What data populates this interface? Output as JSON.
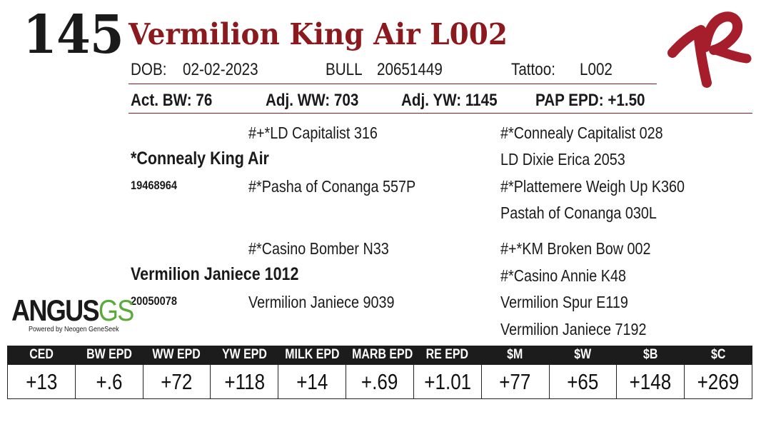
{
  "header": {
    "lot_number": "145",
    "name": "Vermilion King Air L002",
    "dob_label": "DOB:",
    "dob": "02-02-2023",
    "sex": "BULL",
    "registration": "20651449",
    "tattoo_label": "Tattoo:",
    "tattoo": "L002"
  },
  "brand_mark": {
    "color": "#a61d2c"
  },
  "performance": {
    "act_bw": "Act. BW: 76",
    "adj_ww": "Adj. WW: 703",
    "adj_yw": "Adj. YW: 1145",
    "pap_epd": "PAP EPD: +1.50"
  },
  "pedigree": {
    "sire": {
      "name": "*Connealy King Air",
      "reg": "19468964"
    },
    "sire_sire": "#+*LD Capitalist 316",
    "sire_dam": "#*Pasha of Conanga 557P",
    "sire_sire_sire": "#*Connealy Capitalist 028",
    "sire_sire_dam": "LD Dixie Erica 2053",
    "sire_dam_sire": "#*Plattemere Weigh Up K360",
    "sire_dam_dam": "Pastah of Conanga 030L",
    "dam": {
      "name": "Vermilion Janiece 1012",
      "reg": "20050078"
    },
    "dam_sire": "#*Casino Bomber N33",
    "dam_dam": "Vermilion Janiece 9039",
    "dam_sire_sire": "#+*KM Broken Bow 002",
    "dam_sire_dam": "#*Casino Annie K48",
    "dam_dam_sire": "Vermilion Spur E119",
    "dam_dam_dam": "Vermilion Janiece 7192"
  },
  "logo": {
    "main": "ANGUS",
    "accent": "GS",
    "tagline": "Powered by Neogen GeneSeek",
    "accent_color": "#5aaa3c"
  },
  "epd_table": {
    "headers": [
      "CED",
      "BW EPD",
      "WW EPD",
      "YW EPD",
      "MILK EPD",
      "MARB EPD",
      "RE EPD",
      "$M",
      "$W",
      "$B",
      "$C"
    ],
    "values": [
      "+13",
      "+.6",
      "+72",
      "+118",
      "+14",
      "+.69",
      "+1.01",
      "+77",
      "+65",
      "+148",
      "+269"
    ]
  },
  "colors": {
    "accent": "#8b1a1f",
    "header_bg": "#1c1c1c"
  }
}
